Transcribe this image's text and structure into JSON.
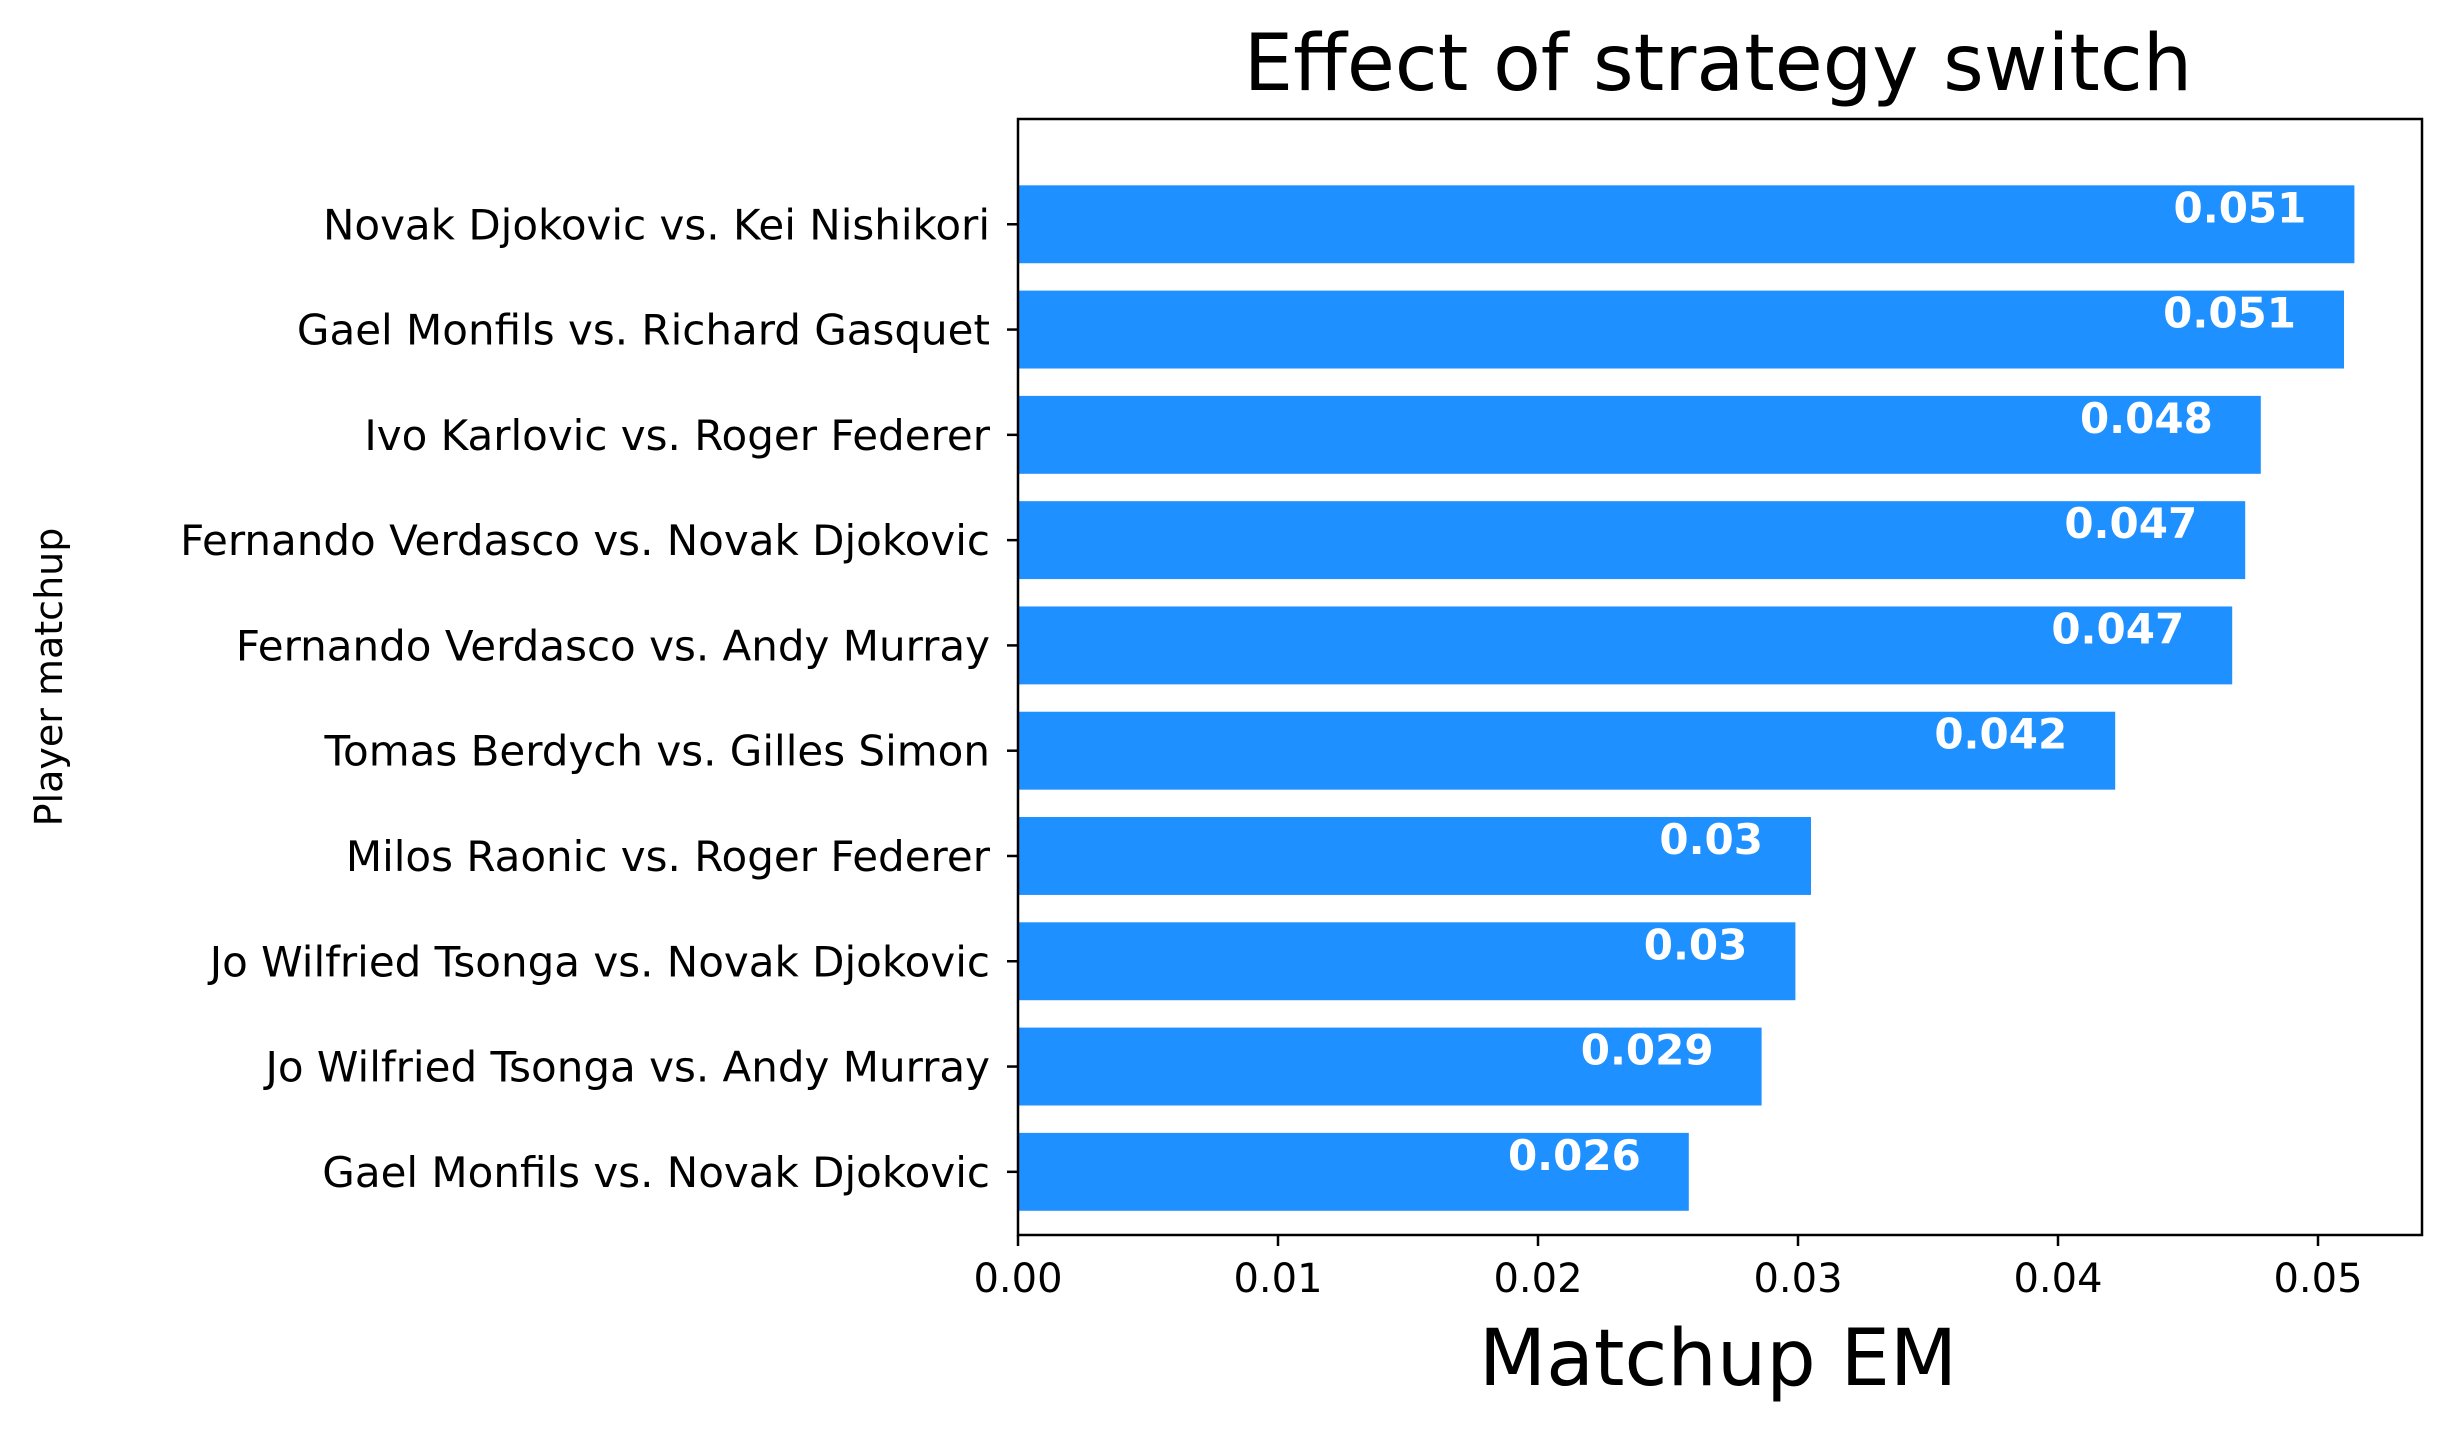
{
  "chart_data": {
    "type": "bar",
    "orientation": "horizontal",
    "title": "Effect of strategy switch",
    "xlabel": "Matchup EM",
    "ylabel": "Player matchup",
    "xlim": [
      0,
      0.054
    ],
    "xticks": [
      0.0,
      0.01,
      0.02,
      0.03,
      0.04,
      0.05
    ],
    "xtick_labels": [
      "0.00",
      "0.01",
      "0.02",
      "0.03",
      "0.04",
      "0.05"
    ],
    "grid": false,
    "legend": "none",
    "bar_color": "#1e90ff",
    "categories": [
      "Novak Djokovic vs. Kei Nishikori",
      "Gael Monfils vs. Richard Gasquet",
      "Ivo Karlovic vs. Roger Federer",
      "Fernando Verdasco vs. Novak Djokovic",
      "Fernando Verdasco vs. Andy Murray",
      "Tomas Berdych vs. Gilles Simon",
      "Milos Raonic vs. Roger Federer",
      "Jo Wilfried Tsonga vs. Novak Djokovic",
      "Jo Wilfried Tsonga vs. Andy Murray",
      "Gael Monfils vs. Novak Djokovic"
    ],
    "values": [
      0.0514,
      0.051,
      0.0478,
      0.0472,
      0.0467,
      0.0422,
      0.0305,
      0.0299,
      0.0286,
      0.0258
    ],
    "data_labels": [
      "0.051",
      "0.051",
      "0.048",
      "0.047",
      "0.047",
      "0.042",
      "0.03",
      "0.03",
      "0.029",
      "0.026"
    ]
  }
}
